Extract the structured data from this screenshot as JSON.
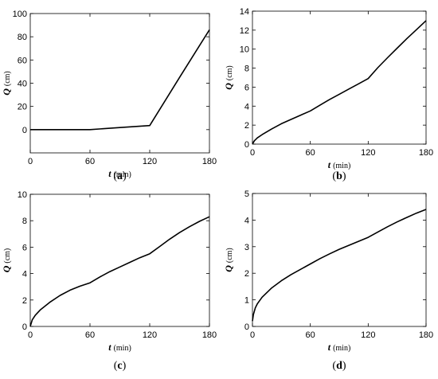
{
  "chart_data": [
    {
      "type": "line",
      "panel_label": "(a)",
      "xlabel": "t",
      "xunit": "(min)",
      "ylabel": "Q",
      "yunit": "(cm)",
      "xlim": [
        0,
        180
      ],
      "ylim": [
        -20,
        100
      ],
      "xticks": [
        0,
        60,
        120,
        180
      ],
      "yticks": [
        0,
        20,
        40,
        60,
        80,
        100
      ],
      "series": [
        {
          "x": [
            0,
            30,
            60,
            90,
            120,
            150,
            180
          ],
          "y": [
            0,
            0,
            0,
            1.8,
            3.5,
            45,
            86
          ]
        }
      ]
    },
    {
      "type": "line",
      "panel_label": "(b)",
      "xlabel": "t",
      "xunit": "(min)",
      "ylabel": "Q",
      "yunit": "(cm)",
      "xlim": [
        0,
        180
      ],
      "ylim": [
        0,
        14
      ],
      "xticks": [
        0,
        60,
        120,
        180
      ],
      "yticks": [
        0,
        2,
        4,
        6,
        8,
        10,
        12,
        14
      ],
      "series": [
        {
          "x": [
            0,
            2,
            5,
            10,
            20,
            30,
            40,
            50,
            60,
            70,
            80,
            90,
            100,
            110,
            120,
            130,
            140,
            150,
            160,
            170,
            180
          ],
          "y": [
            0,
            0.35,
            0.65,
            1.0,
            1.6,
            2.15,
            2.6,
            3.05,
            3.5,
            4.1,
            4.7,
            5.25,
            5.8,
            6.35,
            6.9,
            8.05,
            9.1,
            10.1,
            11.1,
            12.05,
            13.0
          ]
        }
      ]
    },
    {
      "type": "line",
      "panel_label": "(c)",
      "xlabel": "t",
      "xunit": "(min)",
      "ylabel": "Q",
      "yunit": "(cm)",
      "xlim": [
        0,
        180
      ],
      "ylim": [
        0,
        10
      ],
      "xticks": [
        0,
        60,
        120,
        180
      ],
      "yticks": [
        0,
        2,
        4,
        6,
        8,
        10
      ],
      "series": [
        {
          "x": [
            0,
            2,
            5,
            10,
            20,
            30,
            40,
            50,
            60,
            70,
            80,
            90,
            100,
            110,
            120,
            130,
            140,
            150,
            160,
            170,
            180
          ],
          "y": [
            0,
            0.5,
            0.85,
            1.25,
            1.85,
            2.35,
            2.75,
            3.05,
            3.3,
            3.75,
            4.15,
            4.5,
            4.85,
            5.2,
            5.5,
            6.05,
            6.6,
            7.1,
            7.55,
            7.95,
            8.3
          ]
        }
      ]
    },
    {
      "type": "line",
      "panel_label": "(d)",
      "xlabel": "t",
      "xunit": "(min)",
      "ylabel": "Q",
      "yunit": "(cm)",
      "xlim": [
        0,
        180
      ],
      "ylim": [
        0,
        5
      ],
      "xticks": [
        0,
        60,
        120,
        180
      ],
      "yticks": [
        0,
        1,
        2,
        3,
        4,
        5
      ],
      "series": [
        {
          "x": [
            0,
            1,
            3,
            5,
            10,
            20,
            30,
            40,
            50,
            60,
            70,
            80,
            90,
            100,
            110,
            120,
            130,
            140,
            150,
            160,
            170,
            180
          ],
          "y": [
            0.2,
            0.45,
            0.7,
            0.85,
            1.1,
            1.45,
            1.72,
            1.95,
            2.15,
            2.35,
            2.55,
            2.73,
            2.9,
            3.05,
            3.2,
            3.35,
            3.55,
            3.75,
            3.93,
            4.1,
            4.26,
            4.4
          ]
        }
      ]
    }
  ]
}
